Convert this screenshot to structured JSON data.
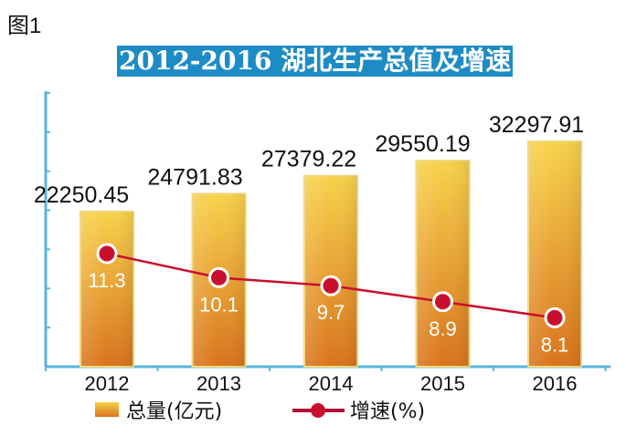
{
  "figure_label": "图1",
  "chart_data": {
    "type": "bar",
    "title": "2012-2016 湖北生产总值及增速",
    "categories": [
      "2012",
      "2013",
      "2014",
      "2015",
      "2016"
    ],
    "series": [
      {
        "name": "总量(亿元)",
        "type": "bar",
        "values": [
          22250.45,
          24791.83,
          27379.22,
          29550.19,
          32297.91
        ],
        "labels": [
          "22250.45",
          "24791.83",
          "27379.22",
          "29550.19",
          "32297.91"
        ]
      },
      {
        "name": "增速(%)",
        "type": "line",
        "values": [
          11.3,
          10.1,
          9.7,
          8.9,
          8.1
        ],
        "labels": [
          "11.3",
          "10.1",
          "9.7",
          "8.9",
          "8.1"
        ]
      }
    ],
    "ylim": [
      0,
      39500
    ],
    "legend": "bottom",
    "colors": {
      "bar_top": "#f7d24a",
      "bar_bottom": "#d9731c",
      "line": "#c8102e",
      "axis": "#5ab4dc"
    }
  }
}
